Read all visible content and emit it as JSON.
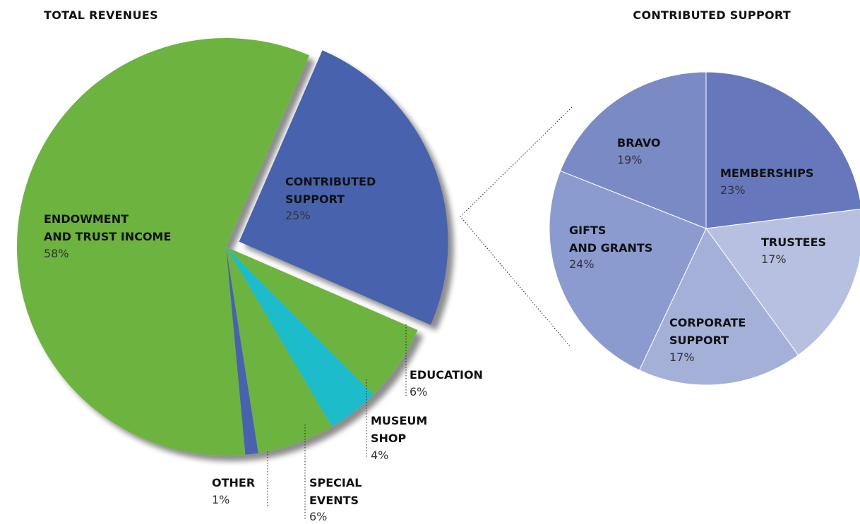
{
  "chart_data": [
    {
      "type": "pie",
      "title": "TOTAL REVENUES",
      "exploded": "CONTRIBUTED SUPPORT",
      "slices": [
        {
          "key": "contributed-support",
          "lines": [
            "CONTRIBUTED",
            "SUPPORT"
          ],
          "value": 25,
          "value_label": "25%",
          "color": "#4a62ad"
        },
        {
          "key": "education",
          "lines": [
            "EDUCATION"
          ],
          "value": 6,
          "value_label": "6%",
          "color": "#6db33f"
        },
        {
          "key": "museum-shop",
          "lines": [
            "MUSEUM",
            "SHOP"
          ],
          "value": 4,
          "value_label": "4%",
          "color": "#1fbccb"
        },
        {
          "key": "special-events",
          "lines": [
            "SPECIAL",
            "EVENTS"
          ],
          "value": 6,
          "value_label": "6%",
          "color": "#6db33f"
        },
        {
          "key": "other",
          "lines": [
            "OTHER"
          ],
          "value": 1,
          "value_label": "1%",
          "color": "#4a62ad"
        },
        {
          "key": "endowment",
          "lines": [
            "ENDOWMENT",
            "AND TRUST INCOME"
          ],
          "value": 58,
          "value_label": "58%",
          "color": "#6db33f"
        }
      ]
    },
    {
      "type": "pie",
      "title": "CONTRIBUTED SUPPORT",
      "slices": [
        {
          "key": "memberships",
          "lines": [
            "MEMBERSHIPS"
          ],
          "value": 23,
          "value_label": "23%",
          "color": "#6678bb"
        },
        {
          "key": "trustees",
          "lines": [
            "TRUSTEES"
          ],
          "value": 17,
          "value_label": "17%",
          "color": "#b7c0e0"
        },
        {
          "key": "corporate-support",
          "lines": [
            "CORPORATE",
            "SUPPORT"
          ],
          "value": 17,
          "value_label": "17%",
          "color": "#a4b0d8"
        },
        {
          "key": "gifts-and-grants",
          "lines": [
            "GIFTS",
            "AND GRANTS"
          ],
          "value": 24,
          "value_label": "24%",
          "color": "#8c9bcf"
        },
        {
          "key": "bravo",
          "lines": [
            "BRAVO"
          ],
          "value": 19,
          "value_label": "19%",
          "color": "#7a8ac5"
        }
      ]
    }
  ]
}
